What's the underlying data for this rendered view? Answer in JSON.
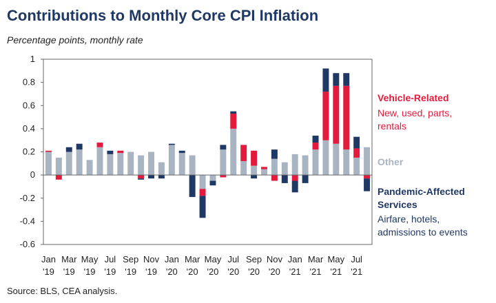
{
  "title": "Contributions to Monthly Core CPI Inflation",
  "subtitle": "Percentage points, monthly rate",
  "source": "Source: BLS, CEA analysis.",
  "colors": {
    "vehicle": "#e31a3c",
    "other": "#a9b4c2",
    "pandemic": "#1f3864",
    "axis": "#666666"
  },
  "chart_data": {
    "type": "bar",
    "stacked": true,
    "ylim": [
      -0.6,
      1
    ],
    "yticks": [
      "1",
      "0.8",
      "0.6",
      "0.4",
      "0.2",
      "0",
      "-0.2",
      "-0.4",
      "-0.6"
    ],
    "ytick_values": [
      1,
      0.8,
      0.6,
      0.4,
      0.2,
      0,
      -0.2,
      -0.4,
      -0.6
    ],
    "xlabel": "",
    "ylabel": "",
    "grid": false,
    "categories": [
      "Jan '19",
      "Feb '19",
      "Mar '19",
      "Apr '19",
      "May '19",
      "Jun '19",
      "Jul '19",
      "Aug '19",
      "Sep '19",
      "Oct '19",
      "Nov '19",
      "Dec '19",
      "Jan '20",
      "Feb '20",
      "Mar '20",
      "Apr '20",
      "May '20",
      "Jun '20",
      "Jul '20",
      "Aug '20",
      "Sep '20",
      "Oct '20",
      "Nov '20",
      "Dec '20",
      "Jan '21",
      "Feb '21",
      "Mar '21",
      "Apr '21",
      "May '21",
      "Jun '21",
      "Jul '21",
      "Aug '21"
    ],
    "xtick_labels": [
      {
        "index": 0,
        "top": "Jan",
        "bottom": "'19"
      },
      {
        "index": 2,
        "top": "Mar",
        "bottom": "'19"
      },
      {
        "index": 4,
        "top": "May",
        "bottom": "'19"
      },
      {
        "index": 6,
        "top": "Jul",
        "bottom": "'19"
      },
      {
        "index": 8,
        "top": "Sep",
        "bottom": "'19"
      },
      {
        "index": 10,
        "top": "Nov",
        "bottom": "'19"
      },
      {
        "index": 12,
        "top": "Jan",
        "bottom": "'20"
      },
      {
        "index": 14,
        "top": "Mar",
        "bottom": "'20"
      },
      {
        "index": 16,
        "top": "May",
        "bottom": "'20"
      },
      {
        "index": 18,
        "top": "Jul",
        "bottom": "'20"
      },
      {
        "index": 20,
        "top": "Sep",
        "bottom": "'20"
      },
      {
        "index": 22,
        "top": "Nov",
        "bottom": "'20"
      },
      {
        "index": 24,
        "top": "Jan",
        "bottom": "'21"
      },
      {
        "index": 26,
        "top": "Mar",
        "bottom": "'21"
      },
      {
        "index": 28,
        "top": "May",
        "bottom": "'21"
      },
      {
        "index": 30,
        "top": "Jul",
        "bottom": "'21"
      }
    ],
    "series": [
      {
        "name": "Other",
        "key": "other",
        "values": [
          0.2,
          0.15,
          0.2,
          0.22,
          0.13,
          0.24,
          0.18,
          0.19,
          0.2,
          0.17,
          0.2,
          0.11,
          0.26,
          0.19,
          0.17,
          -0.12,
          -0.05,
          0.22,
          0.4,
          0.12,
          0.08,
          0.05,
          0.14,
          0.11,
          0.18,
          0.17,
          0.22,
          0.3,
          0.27,
          0.22,
          0.15,
          0.24
        ]
      },
      {
        "name": "Vehicle-Related",
        "key": "vehicle",
        "values": [
          0.01,
          -0.04,
          0.0,
          0.0,
          0.0,
          0.04,
          0.0,
          0.02,
          0.0,
          -0.03,
          0.0,
          0.0,
          0.0,
          0.0,
          0.0,
          -0.06,
          0.0,
          -0.02,
          0.13,
          0.14,
          0.13,
          0.02,
          -0.05,
          0.0,
          -0.05,
          0.0,
          0.06,
          0.42,
          0.5,
          0.55,
          0.08,
          -0.03
        ]
      },
      {
        "name": "Pandemic-Affected Services",
        "key": "pandemic",
        "values": [
          0.0,
          0.0,
          0.04,
          0.05,
          0.0,
          0.0,
          0.03,
          0.0,
          0.0,
          -0.01,
          -0.03,
          -0.03,
          0.01,
          0.02,
          -0.19,
          -0.19,
          -0.04,
          0.04,
          0.02,
          0.0,
          -0.03,
          0.0,
          0.08,
          -0.07,
          -0.1,
          -0.07,
          0.06,
          0.2,
          0.11,
          0.11,
          0.1,
          -0.11
        ]
      }
    ],
    "legend": [
      {
        "key": "vehicle",
        "title": "Vehicle-Related",
        "lines": [
          "New, used, parts,",
          "rentals"
        ]
      },
      {
        "key": "other",
        "title": "Other",
        "lines": []
      },
      {
        "key": "pandemic",
        "title": "Pandemic-Affected",
        "title2": "Services",
        "lines": [
          "Airfare, hotels,",
          "admissions to events"
        ]
      }
    ],
    "legend_placement": "right"
  }
}
